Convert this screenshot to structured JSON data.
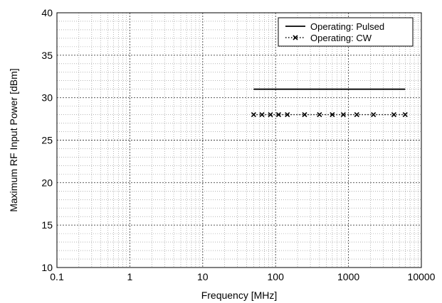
{
  "chart_data": {
    "type": "line",
    "title": "",
    "xlabel": "Frequency [MHz]",
    "ylabel": "Maximum RF Input Power [dBm]",
    "x_scale": "log",
    "xlim": [
      0.1,
      10000
    ],
    "ylim": [
      10,
      40
    ],
    "grid": true,
    "legend_position": "top-right",
    "x_ticks": [
      {
        "value": 0.1,
        "label": "0.1"
      },
      {
        "value": 1,
        "label": "1"
      },
      {
        "value": 10,
        "label": "10"
      },
      {
        "value": 100,
        "label": "100"
      },
      {
        "value": 1000,
        "label": "1000"
      },
      {
        "value": 10000,
        "label": "10000"
      }
    ],
    "y_ticks": [
      {
        "value": 10,
        "label": "10"
      },
      {
        "value": 15,
        "label": "15"
      },
      {
        "value": 20,
        "label": "20"
      },
      {
        "value": 25,
        "label": "25"
      },
      {
        "value": 30,
        "label": "30"
      },
      {
        "value": 35,
        "label": "35"
      },
      {
        "value": 40,
        "label": "40"
      }
    ],
    "series": [
      {
        "name": "Operating: Pulsed",
        "style": "solid",
        "color": "#000000",
        "x": [
          50,
          6000
        ],
        "y": [
          31,
          31
        ]
      },
      {
        "name": "Operating: CW",
        "style": "dotted-x",
        "color": "#000000",
        "x": [
          50,
          65,
          85,
          110,
          145,
          250,
          400,
          600,
          850,
          1300,
          2200,
          4200,
          6000
        ],
        "y": [
          28,
          28,
          28,
          28,
          28,
          28,
          28,
          28,
          28,
          28,
          28,
          28,
          28
        ]
      }
    ]
  }
}
